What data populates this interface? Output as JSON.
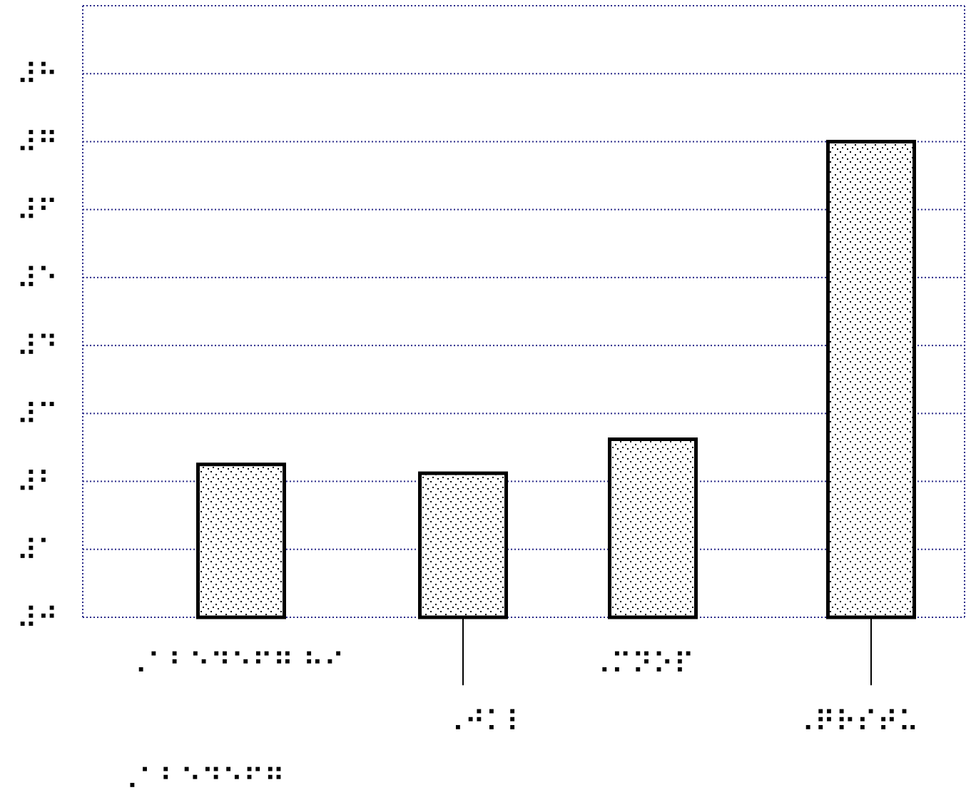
{
  "chart_data": {
    "type": "bar",
    "categories": [
      "⠠⠁⠃⠑⠙⠑⠋⠛ ⠓⠊",
      "⠠⠚⠅⠇",
      "⠠⠍⠝⠕⠏",
      "⠠⠟⠗⠎⠞⠥"
    ],
    "category_sublabels": [
      "⠠⠁⠃⠑⠙⠑⠋⠛",
      "⠠⠚⠅⠇⠍",
      "⠠⠍⠝⠕⠏",
      "⠠⠟⠗⠎⠞⠥⠧"
    ],
    "values": [
      2.25,
      2.12,
      2.62,
      7.0
    ],
    "error_low": [
      null,
      1.0,
      null,
      1.0
    ],
    "y_ticks": [
      "⠼⠚",
      "⠼⠁",
      "⠼⠃",
      "⠼⠉",
      "⠼⠙",
      "⠼⠑",
      "⠼⠋",
      "⠼⠛",
      "⠼⠓"
    ],
    "ylim": [
      0,
      9
    ],
    "grid": true,
    "legend": "none",
    "colors": {
      "grid": "#2b2b8a",
      "bar_fill": "#ffffff",
      "bar_stroke": "#000000",
      "stipple": "#000000"
    }
  }
}
